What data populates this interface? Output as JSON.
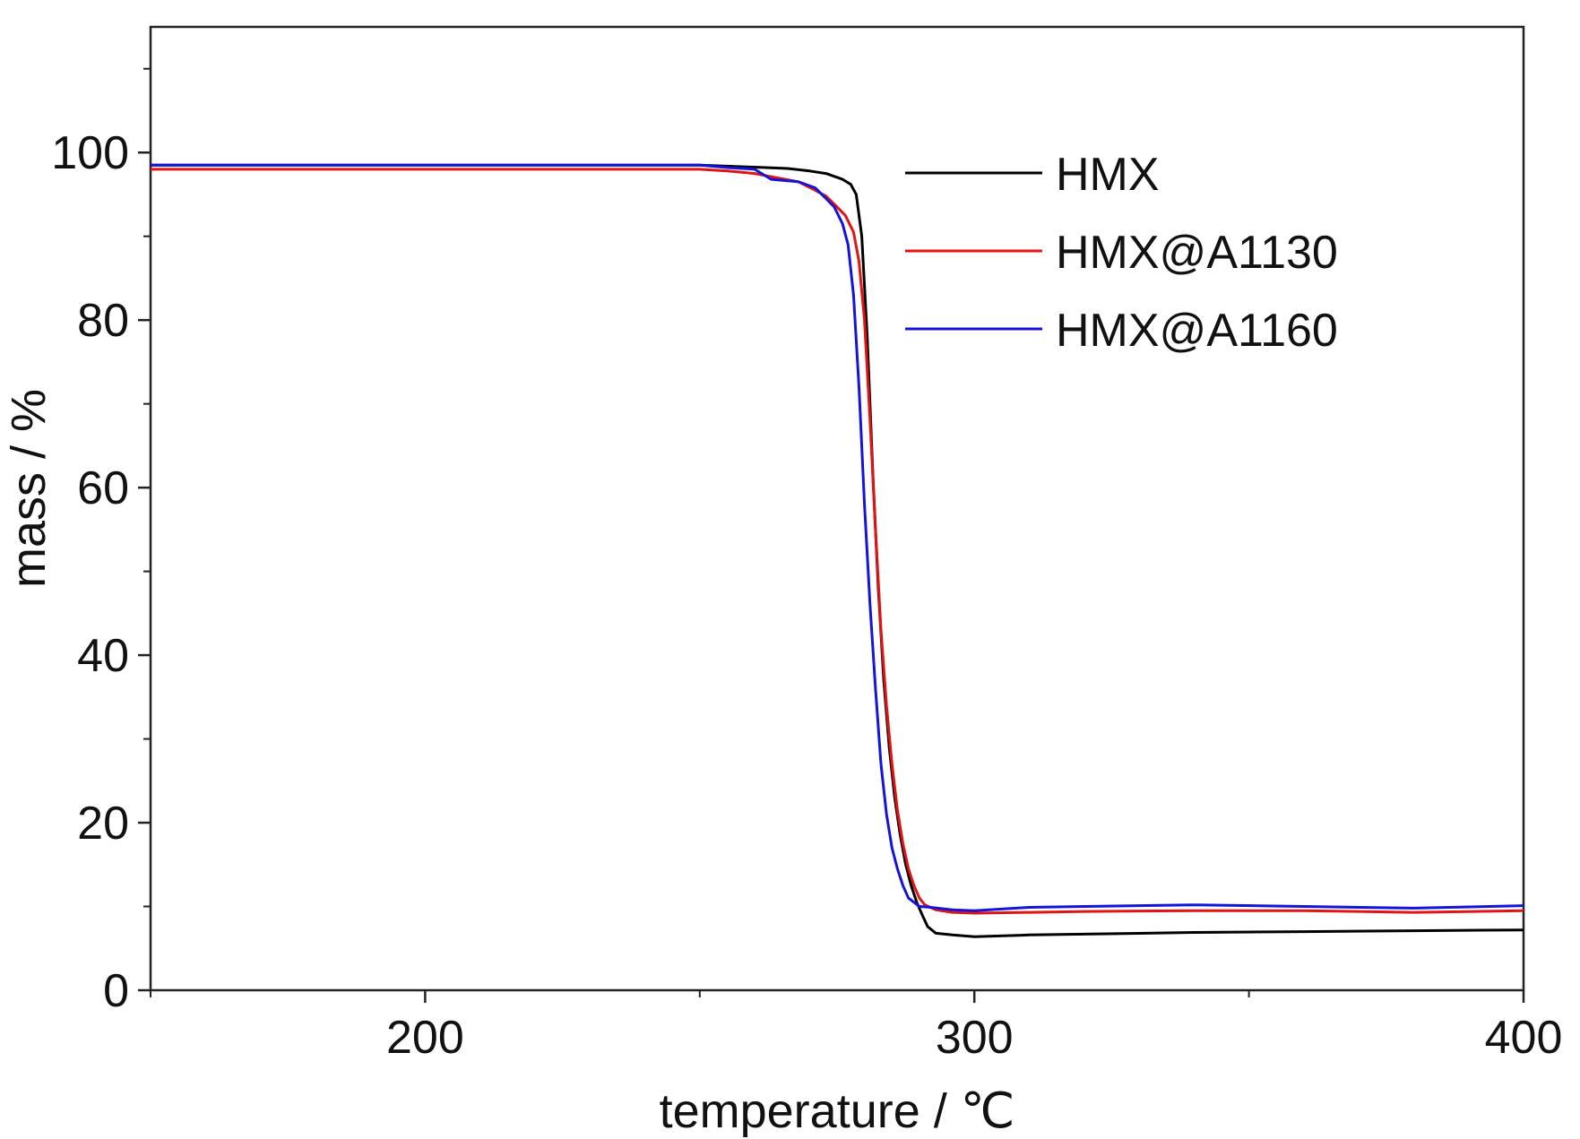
{
  "chart_data": {
    "type": "line",
    "title": "",
    "xlabel": "temperature / ℃",
    "ylabel": "mass / %",
    "xlim": [
      150,
      400
    ],
    "ylim": [
      0,
      115
    ],
    "xticks": [
      200,
      300,
      400
    ],
    "yticks": [
      0,
      20,
      40,
      60,
      80,
      100
    ],
    "grid": false,
    "legend_position": "top-right",
    "series": [
      {
        "name": "HMX",
        "color": "#000000",
        "x": [
          150,
          200,
          250,
          258,
          262,
          266,
          270,
          273,
          276,
          277.5,
          278.5,
          279.5,
          280.5,
          281.5,
          282.5,
          283.5,
          284.5,
          285.5,
          286.5,
          287.5,
          288.5,
          289.5,
          290.5,
          291.5,
          293,
          296,
          300,
          310,
          320,
          340,
          360,
          380,
          400
        ],
        "y": [
          98.5,
          98.5,
          98.5,
          98.3,
          98.2,
          98.1,
          97.8,
          97.5,
          96.8,
          96.2,
          95,
          90,
          78,
          62,
          48,
          37,
          29,
          23,
          18.5,
          15,
          12.5,
          10.5,
          9,
          7.6,
          6.8,
          6.6,
          6.4,
          6.6,
          6.7,
          6.9,
          7.0,
          7.1,
          7.2
        ]
      },
      {
        "name": "HMX@A1130",
        "color": "#e01414",
        "x": [
          150,
          200,
          250,
          255,
          260,
          264,
          268,
          271,
          273,
          275,
          276.5,
          278,
          279,
          280,
          281,
          282,
          283,
          284,
          285,
          286,
          287,
          288,
          289,
          290,
          291,
          293,
          296,
          300,
          310,
          320,
          340,
          360,
          380,
          400
        ],
        "y": [
          98.0,
          98.0,
          98.0,
          97.8,
          97.5,
          97.0,
          96.5,
          95.5,
          94.8,
          93.5,
          92.5,
          90.5,
          87,
          80,
          68,
          55,
          43,
          34,
          27,
          21.5,
          17.5,
          14.5,
          12.5,
          11,
          10.2,
          9.6,
          9.3,
          9.2,
          9.3,
          9.4,
          9.5,
          9.5,
          9.3,
          9.5
        ]
      },
      {
        "name": "HMX@A1160",
        "color": "#1414d8",
        "x": [
          150,
          200,
          250,
          255,
          260,
          263,
          268,
          271,
          273,
          274.5,
          276,
          277,
          278,
          279,
          280,
          281,
          282,
          283,
          284,
          285,
          286,
          287,
          288,
          289,
          290,
          292,
          296,
          300,
          310,
          320,
          340,
          360,
          380,
          400
        ],
        "y": [
          98.5,
          98.5,
          98.5,
          98.2,
          98.0,
          96.8,
          96.5,
          95.8,
          94.5,
          93.5,
          91.5,
          89,
          83,
          72,
          58,
          46,
          36,
          27,
          21,
          17,
          14.5,
          12.5,
          11,
          10.5,
          10.0,
          9.9,
          9.6,
          9.5,
          9.9,
          10.0,
          10.2,
          10.0,
          9.8,
          10.1
        ]
      }
    ]
  }
}
